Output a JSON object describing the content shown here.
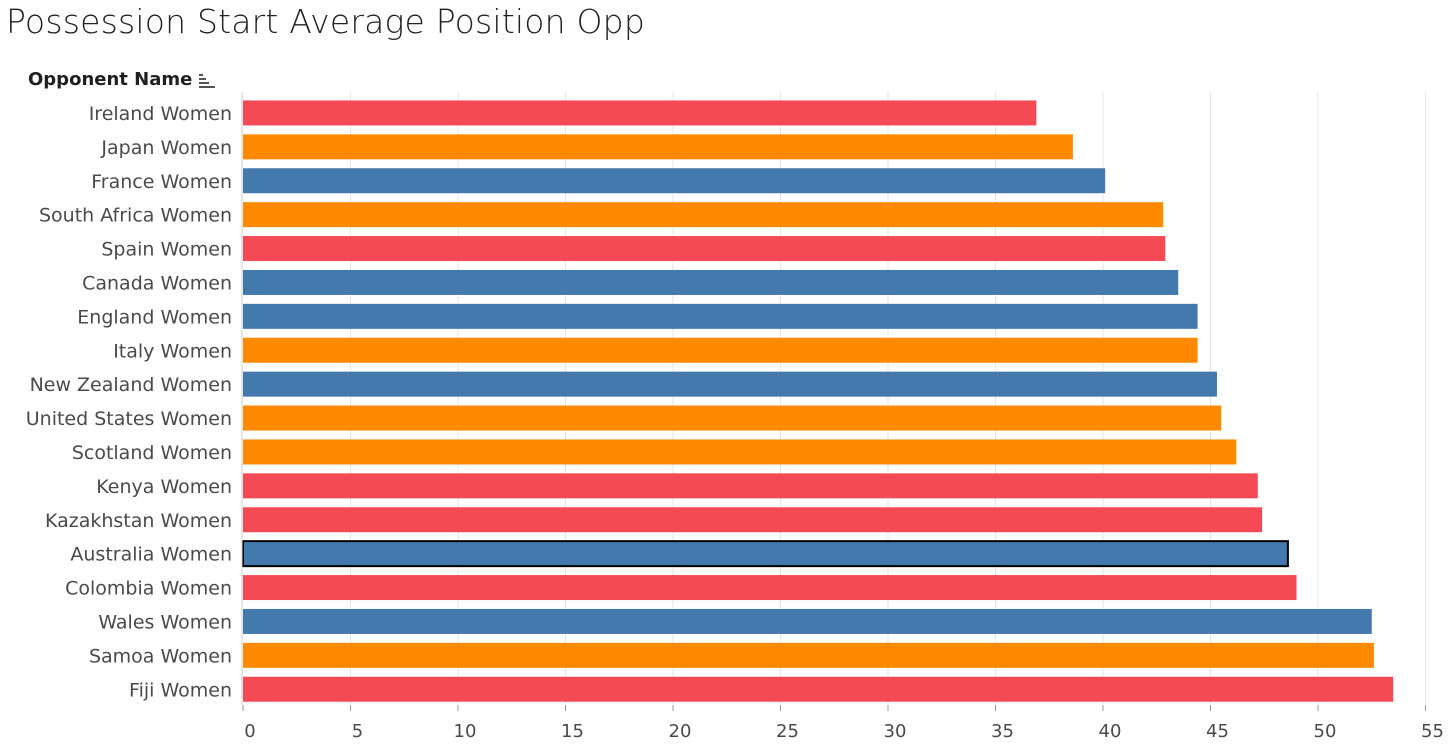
{
  "title": "Possession Start Average Position Opp",
  "header": {
    "field_label": "Opponent Name",
    "sort_icon": "sort-descending-icon"
  },
  "colors": {
    "red": "#F44A55",
    "orange": "#FF8A00",
    "blue": "#4479AD",
    "grid": "#E6E6E6",
    "label": "#4A4A4A",
    "highlight_border": "#000000"
  },
  "chart_data": {
    "type": "bar",
    "orientation": "horizontal",
    "title": "Possession Start Average Position Opp",
    "ylabel": "Opponent Name",
    "xlabel": "",
    "xlim": [
      0,
      55
    ],
    "xticks": [
      0,
      5,
      10,
      15,
      20,
      25,
      30,
      35,
      40,
      45,
      50,
      55
    ],
    "grid": "vertical",
    "categories": [
      "Ireland Women",
      "Japan Women",
      "France Women",
      "South Africa Women",
      "Spain Women",
      "Canada Women",
      "England Women",
      "Italy Women",
      "New Zealand Women",
      "United States Women",
      "Scotland Women",
      "Kenya Women",
      "Kazakhstan Women",
      "Australia Women",
      "Colombia Women",
      "Wales Women",
      "Samoa Women",
      "Fiji Women"
    ],
    "values": [
      36.9,
      38.6,
      40.1,
      42.8,
      42.9,
      43.5,
      44.4,
      44.4,
      45.3,
      45.5,
      46.2,
      47.2,
      47.4,
      48.6,
      49.0,
      52.5,
      52.6,
      53.5
    ],
    "bar_colors": [
      "red",
      "orange",
      "blue",
      "orange",
      "red",
      "blue",
      "blue",
      "orange",
      "blue",
      "orange",
      "orange",
      "red",
      "red",
      "blue",
      "red",
      "blue",
      "orange",
      "red"
    ],
    "highlighted": "Australia Women"
  }
}
